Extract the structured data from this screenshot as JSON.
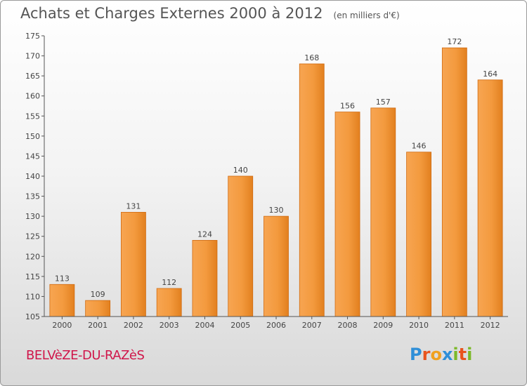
{
  "title": "Achats et Charges Externes 2000 à 2012",
  "unit": "(en milliers d'€)",
  "town": "BELVèZE-DU-RAZèS",
  "logo": {
    "letters": [
      "P",
      "r",
      "o",
      "x",
      "i",
      "t",
      "i"
    ],
    "colors": [
      "#2e8fd8",
      "#e8541e",
      "#f0a01e",
      "#2e8fd8",
      "#7bb928",
      "#e8541e",
      "#7bb928"
    ]
  },
  "colors": {
    "bar": "#f08a24",
    "bar_edge": "#d06a10",
    "label": "#444444",
    "axis": "#555555"
  },
  "chart_data": {
    "type": "bar",
    "categories": [
      "2000",
      "2001",
      "2002",
      "2003",
      "2004",
      "2005",
      "2006",
      "2007",
      "2008",
      "2009",
      "2010",
      "2011",
      "2012"
    ],
    "values": [
      113,
      109,
      131,
      112,
      124,
      140,
      130,
      168,
      156,
      157,
      146,
      172,
      164
    ],
    "ylim": [
      105,
      175
    ],
    "yticks": [
      105,
      110,
      115,
      120,
      125,
      130,
      135,
      140,
      145,
      150,
      155,
      160,
      165,
      170,
      175
    ],
    "xlabel": "",
    "ylabel": "",
    "grid": false
  }
}
